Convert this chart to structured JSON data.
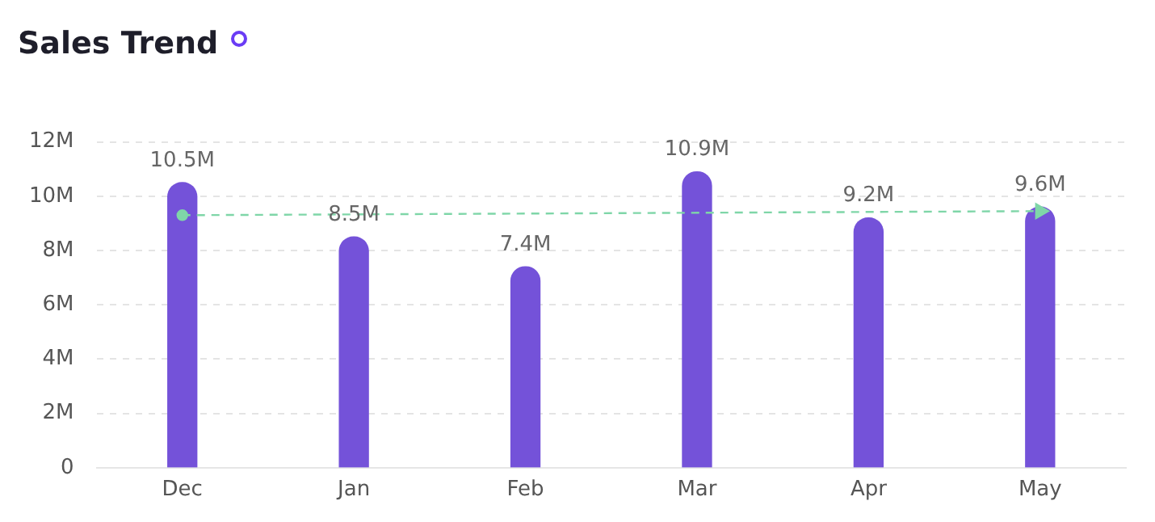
{
  "chart_data": {
    "type": "bar",
    "title": "Sales Trend",
    "categories": [
      "Dec",
      "Jan",
      "Feb",
      "Mar",
      "Apr",
      "May"
    ],
    "series": [
      {
        "color": "#7452d9",
        "values": [
          10.5,
          8.5,
          7.4,
          10.9,
          9.2,
          9.6
        ],
        "value_labels": [
          "10.5M",
          "8.5M",
          "7.4M",
          "10.9M",
          "9.2M",
          "9.6M"
        ]
      },
      {
        "type": "line",
        "color": "#7fd6a8",
        "x": [
          "Dec",
          "May"
        ],
        "values": [
          9.3,
          9.45
        ],
        "line_style": "dashed",
        "marker": "circle"
      }
    ],
    "ylim": [
      0,
      12
    ],
    "yticks": [
      {
        "value": 0,
        "label": "0"
      },
      {
        "value": 2,
        "label": "2M"
      },
      {
        "value": 4,
        "label": "4M"
      },
      {
        "value": 6,
        "label": "6M"
      },
      {
        "value": 8,
        "label": "8M"
      },
      {
        "value": 10,
        "label": "10M"
      },
      {
        "value": 12,
        "label": "12M"
      }
    ],
    "grid": "y",
    "legend": false
  }
}
